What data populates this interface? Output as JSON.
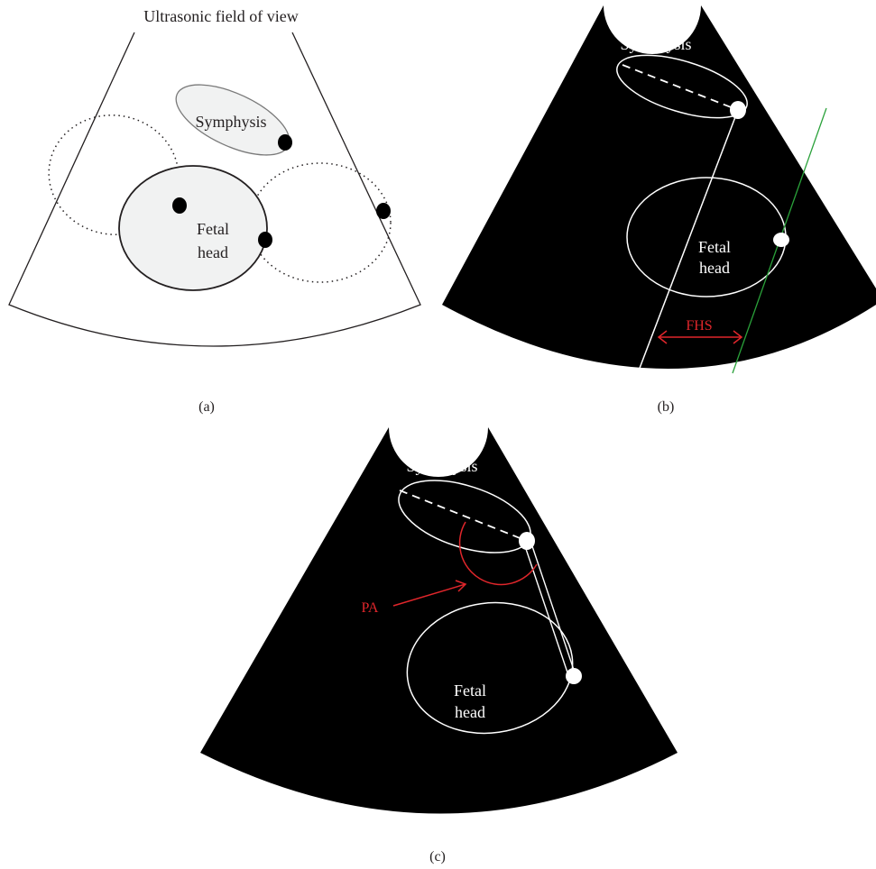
{
  "panel_a": {
    "title": "Ultrasonic field of view",
    "symphysis_label": "Symphysis",
    "head_label_line1": "Fetal",
    "head_label_line2": "head",
    "caption": "(a)"
  },
  "panel_b": {
    "symphysis_label": "Symphysis",
    "head_label_line1": "Fetal",
    "head_label_line2": "head",
    "measure_label": "FHS",
    "caption": "(b)"
  },
  "panel_c": {
    "symphysis_label": "Symphysis",
    "head_label_line1": "Fetal",
    "head_label_line2": "head",
    "angle_label": "PA",
    "caption": "(c)"
  },
  "colors": {
    "ink": "#231f20",
    "scan_background": "#000000",
    "measure_red": "#e0262b",
    "reference_green": "#2aa13a",
    "fill_light": "#f1f2f2",
    "symphysis_outline": "#7a7a7a"
  }
}
